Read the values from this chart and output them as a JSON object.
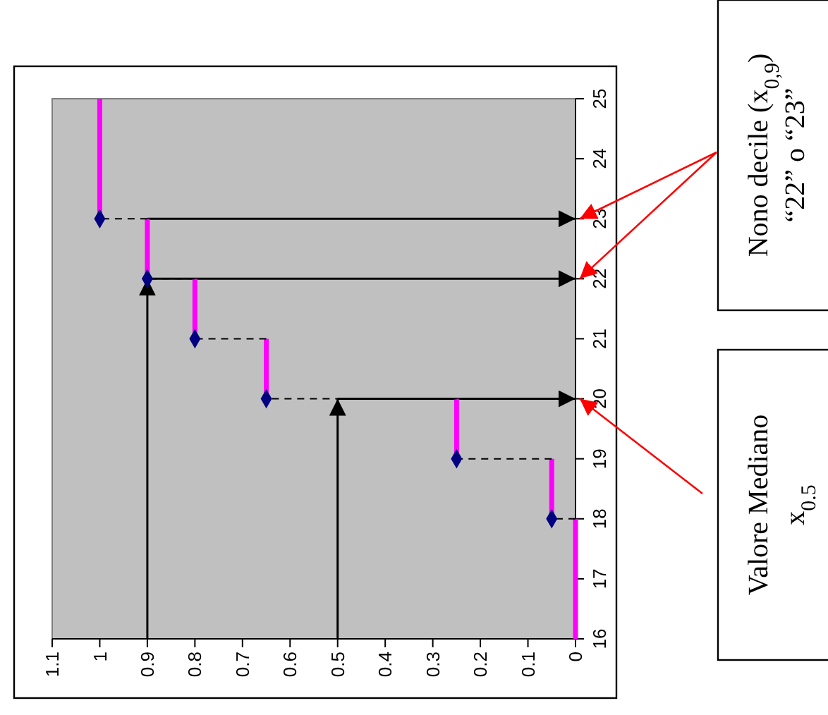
{
  "chart_data": {
    "type": "line",
    "xlim": [
      1.1,
      0
    ],
    "xticks": [
      1.1,
      1,
      0.9,
      0.8,
      0.7,
      0.6,
      0.5,
      0.4,
      0.3,
      0.2,
      0.1,
      0
    ],
    "ylim": [
      16,
      25
    ],
    "yticks": [
      16,
      17,
      18,
      19,
      20,
      21,
      22,
      23,
      24,
      25
    ],
    "series": [
      {
        "color": "#ff00ff",
        "line_style": "solid",
        "x": [
          0,
          0,
          null,
          0.05,
          0.05,
          null,
          0.25,
          0.25,
          null,
          0.65,
          0.65,
          null,
          0.8,
          0.8,
          null,
          0.9,
          0.9,
          null,
          1,
          1
        ],
        "values": [
          16,
          18,
          null,
          18,
          19,
          null,
          19,
          20,
          null,
          20,
          21,
          null,
          21,
          22,
          null,
          22,
          23,
          null,
          23,
          25
        ]
      },
      {
        "color": "#000000",
        "line_style": "dashed",
        "x": [
          0,
          0.05,
          null,
          0.05,
          0.25,
          null,
          0.25,
          0.65,
          null,
          0.65,
          0.8,
          null,
          0.8,
          0.9,
          null,
          0.9,
          1
        ],
        "values": [
          18,
          18,
          null,
          19,
          19,
          null,
          20,
          20,
          null,
          21,
          21,
          null,
          22,
          22,
          null,
          23,
          23
        ]
      },
      {
        "type": "scatter",
        "color": "#000080",
        "marker": "diamond",
        "x": [
          0.05,
          0.25,
          0.65,
          0.8,
          0.9,
          1
        ],
        "values": [
          18,
          19,
          20,
          21,
          22,
          23
        ]
      }
    ],
    "ref_lines": [
      {
        "axis": "x",
        "value": 0.9,
        "label": null
      },
      {
        "axis": "x",
        "value": 0.5,
        "label": null
      }
    ],
    "annotations": [
      "Nono decile (x$_{0,9}$)\n“22” o “23”",
      "Valore Mediano\nx$_{0.5}$"
    ]
  }
}
